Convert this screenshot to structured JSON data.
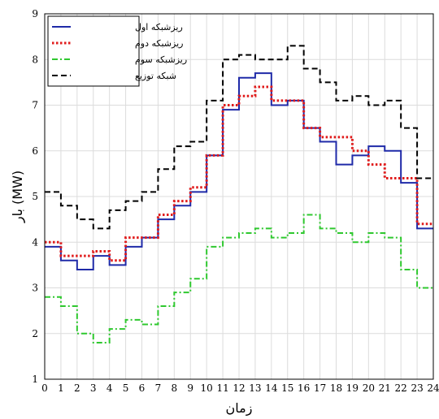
{
  "chart_data": {
    "type": "line",
    "step": true,
    "xlabel": "زمان",
    "ylabel": "بار (MW)",
    "xlim": [
      0,
      24
    ],
    "ylim": [
      1,
      9
    ],
    "xticks": [
      "0",
      "1",
      "2",
      "3",
      "4",
      "5",
      "6",
      "7",
      "8",
      "9",
      "10",
      "11",
      "12",
      "13",
      "14",
      "15",
      "16",
      "17",
      "18",
      "19",
      "20",
      "21",
      "22",
      "23",
      "24"
    ],
    "yticks": [
      "1",
      "2",
      "3",
      "4",
      "5",
      "6",
      "7",
      "8",
      "9"
    ],
    "grid": true,
    "legend_position": "top-left",
    "x": [
      0,
      1,
      2,
      3,
      4,
      5,
      6,
      7,
      8,
      9,
      10,
      11,
      12,
      13,
      14,
      15,
      16,
      17,
      18,
      19,
      20,
      21,
      22,
      23,
      24
    ],
    "series": [
      {
        "name": "ریزشبکه اول",
        "color": "#1f2aa8",
        "style": "solid",
        "values": [
          3.9,
          3.6,
          3.4,
          3.7,
          3.5,
          3.9,
          4.1,
          4.5,
          4.8,
          5.1,
          5.9,
          6.9,
          7.6,
          7.7,
          7.0,
          7.1,
          6.5,
          6.2,
          5.7,
          5.9,
          6.1,
          6.0,
          5.3,
          4.3,
          4.3
        ]
      },
      {
        "name": "ریزشبکه دوم",
        "color": "#e01b1b",
        "style": "dotted",
        "values": [
          4.0,
          3.7,
          3.7,
          3.8,
          3.6,
          4.1,
          4.1,
          4.6,
          4.9,
          5.2,
          5.9,
          7.0,
          7.2,
          7.4,
          7.1,
          7.1,
          6.5,
          6.3,
          6.3,
          6.0,
          5.7,
          5.4,
          5.4,
          4.4,
          4.4
        ]
      },
      {
        "name": "ریزشبکه سوم",
        "color": "#2fc82f",
        "style": "dashdot",
        "values": [
          2.8,
          2.6,
          2.0,
          1.8,
          2.1,
          2.3,
          2.2,
          2.6,
          2.9,
          3.2,
          3.9,
          4.1,
          4.2,
          4.3,
          4.1,
          4.2,
          4.6,
          4.3,
          4.2,
          4.0,
          4.2,
          4.1,
          3.4,
          3.0,
          3.0
        ]
      },
      {
        "name": "شبکه توزیع",
        "color": "#000000",
        "style": "dashed",
        "values": [
          5.1,
          4.8,
          4.5,
          4.3,
          4.7,
          4.9,
          5.1,
          5.6,
          6.1,
          6.2,
          7.1,
          8.0,
          8.1,
          8.0,
          8.0,
          8.3,
          7.8,
          7.5,
          7.1,
          7.2,
          7.0,
          7.1,
          6.5,
          5.4,
          5.4
        ]
      }
    ]
  }
}
